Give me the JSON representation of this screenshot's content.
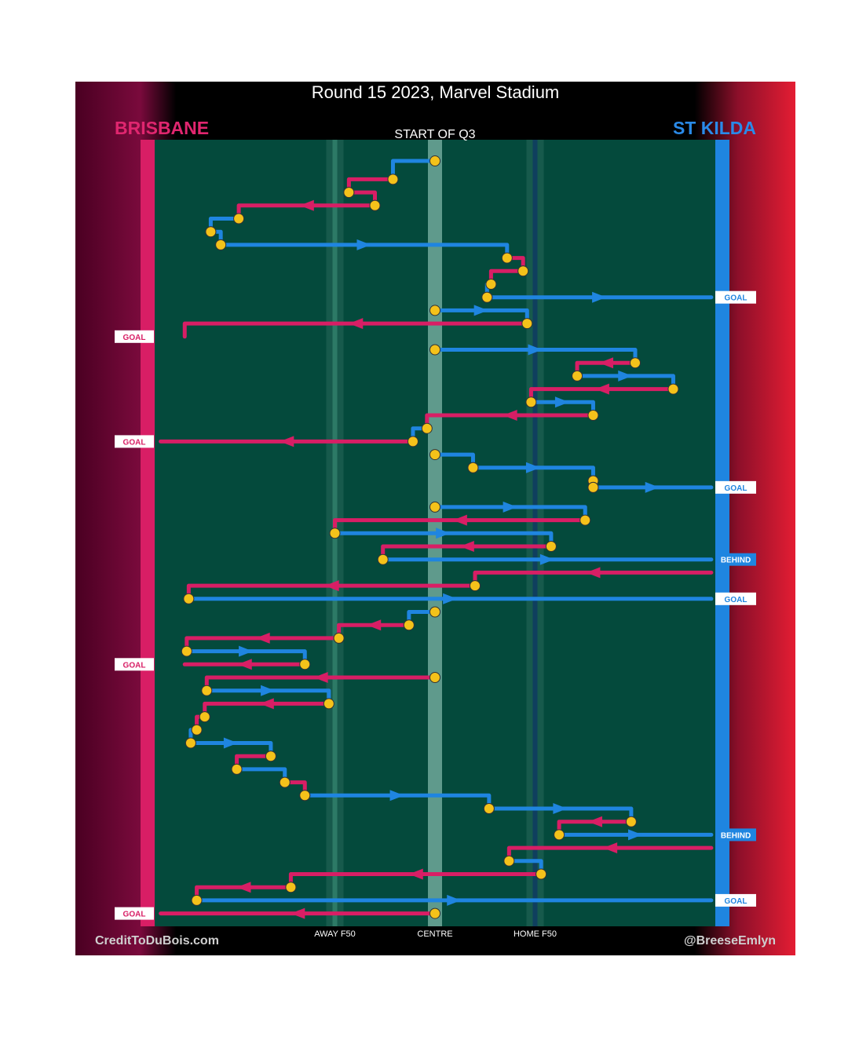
{
  "title": "Round 15 2023, Marvel Stadium",
  "teams": {
    "left": "BRISBANE",
    "right": "ST KILDA"
  },
  "credits": {
    "left": "CreditToDuBois.com",
    "right": "@BreeseEmlyn"
  },
  "colors": {
    "brisbane": "#d81e65",
    "stkilda": "#1f85e0",
    "field": "#044a3c",
    "stoppage": "#f4c21a"
  },
  "chart_data": {
    "type": "flow",
    "start_label": "START OF Q3",
    "x_axis_labels": [
      "AWAY F50",
      "CENTRE",
      "HOME F50"
    ],
    "x_ticks": [
      -50,
      0,
      50
    ],
    "xlim": [
      -140,
      140
    ],
    "outcome_labels": {
      "goal": "GOAL",
      "behind": "BEHIND"
    },
    "chains": [
      {
        "team": "St Kilda",
        "steps": [
          [
            0,
            0.6
          ],
          [
            -21,
            0.6
          ],
          [
            -21,
            2
          ]
        ],
        "end": "turnover"
      },
      {
        "team": "Brisbane",
        "steps": [
          [
            -21,
            2
          ],
          [
            -43,
            2
          ],
          [
            -43,
            3
          ]
        ],
        "end": "stoppage"
      },
      {
        "team": "Brisbane",
        "steps": [
          [
            -43,
            3
          ],
          [
            -30,
            3
          ],
          [
            -30,
            4
          ]
        ],
        "end": "stoppage"
      },
      {
        "team": "Brisbane",
        "steps": [
          [
            -30,
            4
          ],
          [
            -98,
            4
          ],
          [
            -98,
            5
          ]
        ],
        "end": "turnover"
      },
      {
        "team": "St Kilda",
        "steps": [
          [
            -98,
            5
          ],
          [
            -112,
            5
          ],
          [
            -112,
            6
          ]
        ],
        "end": "stoppage"
      },
      {
        "team": "St Kilda",
        "steps": [
          [
            -112,
            6
          ],
          [
            -107,
            6
          ],
          [
            -107,
            7
          ]
        ],
        "end": "stoppage"
      },
      {
        "team": "St Kilda",
        "steps": [
          [
            -107,
            7
          ],
          [
            36,
            7
          ],
          [
            36,
            8
          ]
        ],
        "end": "turnover"
      },
      {
        "team": "Brisbane",
        "steps": [
          [
            36,
            8
          ],
          [
            44,
            8
          ],
          [
            44,
            9
          ]
        ],
        "end": "stoppage"
      },
      {
        "team": "Brisbane",
        "steps": [
          [
            44,
            9
          ],
          [
            28,
            9
          ],
          [
            28,
            10
          ]
        ],
        "end": "turnover"
      },
      {
        "team": "St Kilda",
        "steps": [
          [
            28,
            10
          ],
          [
            26,
            10
          ],
          [
            26,
            11
          ]
        ],
        "end": "stoppage"
      },
      {
        "team": "St Kilda",
        "steps": [
          [
            26,
            11
          ],
          [
            138,
            11
          ]
        ],
        "end": "goal"
      },
      {
        "team": "St Kilda",
        "steps": [
          [
            0,
            12
          ],
          [
            46,
            12
          ],
          [
            46,
            13
          ]
        ],
        "end": "turnover"
      },
      {
        "team": "Brisbane",
        "steps": [
          [
            46,
            13
          ],
          [
            -125,
            13
          ],
          [
            -125,
            14
          ]
        ],
        "end": "goal"
      },
      {
        "team": "St Kilda",
        "steps": [
          [
            0,
            15
          ],
          [
            100,
            15
          ],
          [
            100,
            16
          ]
        ],
        "end": "turnover"
      },
      {
        "team": "Brisbane",
        "steps": [
          [
            100,
            16
          ],
          [
            71,
            16
          ],
          [
            71,
            17
          ]
        ],
        "end": "stoppage"
      },
      {
        "team": "St Kilda",
        "steps": [
          [
            71,
            17
          ],
          [
            119,
            17
          ],
          [
            119,
            18
          ]
        ],
        "end": "turnover"
      },
      {
        "team": "Brisbane",
        "steps": [
          [
            119,
            18
          ],
          [
            48,
            18
          ],
          [
            48,
            19
          ]
        ],
        "end": "turnover"
      },
      {
        "team": "St Kilda",
        "steps": [
          [
            48,
            19
          ],
          [
            79,
            19
          ],
          [
            79,
            20
          ]
        ],
        "end": "turnover"
      },
      {
        "team": "Brisbane",
        "steps": [
          [
            79,
            20
          ],
          [
            -4,
            20
          ],
          [
            -4,
            21
          ]
        ],
        "end": "turnover"
      },
      {
        "team": "St Kilda",
        "steps": [
          [
            -4,
            21
          ],
          [
            -11,
            21
          ],
          [
            -11,
            22
          ]
        ],
        "end": "turnover"
      },
      {
        "team": "Brisbane",
        "steps": [
          [
            -11,
            22
          ],
          [
            -137,
            22
          ]
        ],
        "end": "goal"
      },
      {
        "team": "St Kilda",
        "steps": [
          [
            0,
            23
          ],
          [
            19,
            23
          ],
          [
            19,
            24
          ]
        ],
        "end": "stoppage"
      },
      {
        "team": "St Kilda",
        "steps": [
          [
            19,
            24
          ],
          [
            79,
            24
          ],
          [
            79,
            25
          ]
        ],
        "end": "stoppage"
      },
      {
        "team": "Brisbane",
        "steps": [
          [
            79,
            25
          ],
          [
            79,
            25.5
          ]
        ],
        "end": "stoppage"
      },
      {
        "team": "St Kilda",
        "steps": [
          [
            79,
            25.5
          ],
          [
            138,
            25.5
          ]
        ],
        "end": "goal"
      },
      {
        "team": "St Kilda",
        "steps": [
          [
            0,
            27
          ],
          [
            75,
            27
          ],
          [
            75,
            28
          ]
        ],
        "end": "turnover"
      },
      {
        "team": "Brisbane",
        "steps": [
          [
            75,
            28
          ],
          [
            -50,
            28
          ],
          [
            -50,
            29
          ]
        ],
        "end": "turnover"
      },
      {
        "team": "St Kilda",
        "steps": [
          [
            -50,
            29
          ],
          [
            58,
            29
          ],
          [
            58,
            30
          ]
        ],
        "end": "turnover"
      },
      {
        "team": "Brisbane",
        "steps": [
          [
            58,
            30
          ],
          [
            -26,
            30
          ],
          [
            -26,
            31
          ]
        ],
        "end": "turnover"
      },
      {
        "team": "St Kilda",
        "steps": [
          [
            -26,
            31
          ],
          [
            138,
            31
          ]
        ],
        "end": "behind"
      },
      {
        "team": "Brisbane",
        "steps": [
          [
            138,
            32
          ],
          [
            20,
            32
          ],
          [
            20,
            33
          ]
        ],
        "end": "stoppage"
      },
      {
        "team": "Brisbane",
        "steps": [
          [
            20,
            33
          ],
          [
            -123,
            33
          ],
          [
            -123,
            34
          ]
        ],
        "end": "turnover"
      },
      {
        "team": "St Kilda",
        "steps": [
          [
            -123,
            34
          ],
          [
            138,
            34
          ]
        ],
        "end": "goal"
      },
      {
        "team": "St Kilda",
        "steps": [
          [
            0,
            35
          ],
          [
            -13,
            35
          ],
          [
            -13,
            36
          ]
        ],
        "end": "stoppage"
      },
      {
        "team": "Brisbane",
        "steps": [
          [
            -13,
            36
          ],
          [
            -48,
            36
          ],
          [
            -48,
            37
          ]
        ],
        "end": "stoppage"
      },
      {
        "team": "Brisbane",
        "steps": [
          [
            -48,
            37
          ],
          [
            -124,
            37
          ],
          [
            -124,
            38
          ]
        ],
        "end": "turnover"
      },
      {
        "team": "St Kilda",
        "steps": [
          [
            -124,
            38
          ],
          [
            -65,
            38
          ],
          [
            -65,
            39
          ]
        ],
        "end": "turnover"
      },
      {
        "team": "Brisbane",
        "steps": [
          [
            -65,
            39
          ],
          [
            -125,
            39
          ]
        ],
        "end": "goal"
      },
      {
        "team": "Brisbane",
        "steps": [
          [
            0,
            40
          ],
          [
            -114,
            40
          ],
          [
            -114,
            41
          ]
        ],
        "end": "turnover"
      },
      {
        "team": "St Kilda",
        "steps": [
          [
            -114,
            41
          ],
          [
            -53,
            41
          ],
          [
            -53,
            42
          ]
        ],
        "end": "turnover"
      },
      {
        "team": "Brisbane",
        "steps": [
          [
            -53,
            42
          ],
          [
            -115,
            42
          ],
          [
            -115,
            43
          ]
        ],
        "end": "stoppage"
      },
      {
        "team": "Brisbane",
        "steps": [
          [
            -115,
            43
          ],
          [
            -119,
            43
          ],
          [
            -119,
            44
          ]
        ],
        "end": "stoppage"
      },
      {
        "team": "St Kilda",
        "steps": [
          [
            -119,
            44
          ],
          [
            -122,
            44
          ],
          [
            -122,
            45
          ]
        ],
        "end": "stoppage"
      },
      {
        "team": "St Kilda",
        "steps": [
          [
            -122,
            45
          ],
          [
            -82,
            45
          ],
          [
            -82,
            46
          ]
        ],
        "end": "stoppage"
      },
      {
        "team": "Brisbane",
        "steps": [
          [
            -82,
            46
          ],
          [
            -99,
            46
          ],
          [
            -99,
            47
          ]
        ],
        "end": "stoppage"
      },
      {
        "team": "St Kilda",
        "steps": [
          [
            -99,
            47
          ],
          [
            -75,
            47
          ],
          [
            -75,
            48
          ]
        ],
        "end": "stoppage"
      },
      {
        "team": "Brisbane",
        "steps": [
          [
            -75,
            48
          ],
          [
            -65,
            48
          ],
          [
            -65,
            49
          ]
        ],
        "end": "stoppage"
      },
      {
        "team": "St Kilda",
        "steps": [
          [
            -65,
            49
          ],
          [
            27,
            49
          ],
          [
            27,
            50
          ]
        ],
        "end": "stoppage"
      },
      {
        "team": "St Kilda",
        "steps": [
          [
            27,
            50
          ],
          [
            98,
            50
          ],
          [
            98,
            51
          ]
        ],
        "end": "turnover"
      },
      {
        "team": "Brisbane",
        "steps": [
          [
            98,
            51
          ],
          [
            62,
            51
          ],
          [
            62,
            52
          ]
        ],
        "end": "turnover"
      },
      {
        "team": "St Kilda",
        "steps": [
          [
            62,
            52
          ],
          [
            138,
            52
          ]
        ],
        "end": "behind"
      },
      {
        "team": "Brisbane",
        "steps": [
          [
            138,
            53
          ],
          [
            37,
            53
          ],
          [
            37,
            54
          ]
        ],
        "end": "turnover"
      },
      {
        "team": "St Kilda",
        "steps": [
          [
            37,
            54
          ],
          [
            53,
            54
          ],
          [
            53,
            55
          ]
        ],
        "end": "stoppage"
      },
      {
        "team": "Brisbane",
        "steps": [
          [
            53,
            55
          ],
          [
            -72,
            55
          ],
          [
            -72,
            56
          ]
        ],
        "end": "stoppage"
      },
      {
        "team": "Brisbane",
        "steps": [
          [
            -72,
            56
          ],
          [
            -119,
            56
          ],
          [
            -119,
            57
          ]
        ],
        "end": "turnover"
      },
      {
        "team": "St Kilda",
        "steps": [
          [
            -119,
            57
          ],
          [
            138,
            57
          ]
        ],
        "end": "goal"
      },
      {
        "team": "Brisbane",
        "steps": [
          [
            0,
            58
          ],
          [
            -137,
            58
          ]
        ],
        "end": "goal"
      }
    ]
  }
}
